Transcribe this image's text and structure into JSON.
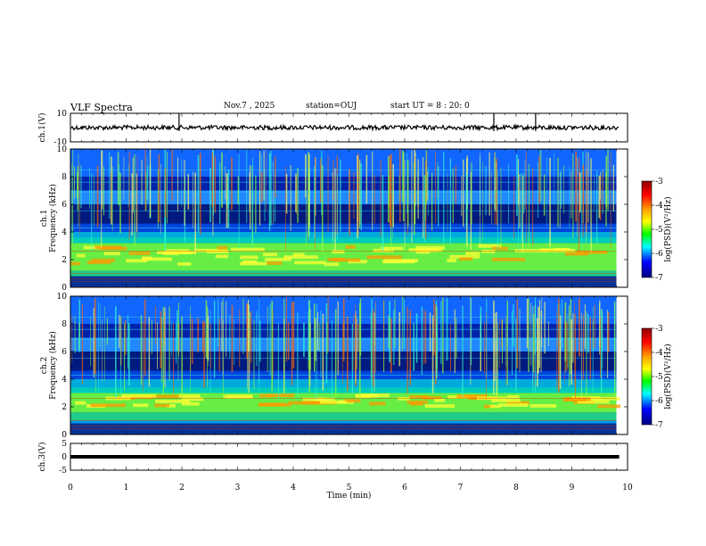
{
  "header": {
    "title": "VLF Spectra",
    "date": "Nov.7 , 2025",
    "station": "station=OUJ",
    "start_ut": "start UT = 8 : 20: 0"
  },
  "chart_data": [
    {
      "type": "line",
      "ylabel": "ch.1(V)",
      "ylim": [
        -10,
        10
      ],
      "yticks": [
        "10",
        "-10"
      ],
      "baseline": 0,
      "spikes_at_min": [
        1.95,
        7.6,
        8.35
      ]
    },
    {
      "type": "heatmap",
      "xlabel": "",
      "ylabel_line1": "ch.1",
      "ylabel_line2": "Frequency (kHz)",
      "xlim": [
        0,
        10
      ],
      "ylim": [
        0,
        10
      ],
      "yticks": [
        "0",
        "2",
        "4",
        "6",
        "8",
        "10"
      ],
      "data_extent_min": 9.8,
      "intense_band_khz": [
        1.2,
        3.2
      ],
      "colorbar": {
        "label": "log(PSD)(V²/Hz)",
        "range": [
          -7,
          -3
        ],
        "ticks": [
          "-3",
          "-4",
          "-5",
          "-6",
          "-7"
        ],
        "colors": [
          "#8b0000",
          "#ff0000",
          "#ffa500",
          "#ffff00",
          "#00ff00",
          "#00ffff",
          "#0000ff",
          "#000080"
        ]
      }
    },
    {
      "type": "heatmap",
      "ylabel_line1": "ch.2",
      "ylabel_line2": "Frequency (kHz)",
      "xlim": [
        0,
        10
      ],
      "ylim": [
        0,
        10
      ],
      "yticks": [
        "0",
        "2",
        "4",
        "6",
        "8",
        "10"
      ],
      "data_extent_min": 9.8,
      "intense_band_khz": [
        1.6,
        3.0
      ],
      "colorbar": {
        "label": "log(PSD)(V²/Hz)",
        "range": [
          -7,
          -3
        ],
        "ticks": [
          "-3",
          "-4",
          "-5",
          "-6",
          "-7"
        ]
      }
    },
    {
      "type": "line",
      "ylabel": "ch.3(V)",
      "ylim": [
        -5,
        5
      ],
      "yticks": [
        "5",
        "0",
        "-5"
      ],
      "baseline": 0,
      "xlabel": "Time (min)",
      "xlim": [
        0,
        10
      ],
      "xticks": [
        "0",
        "1",
        "2",
        "3",
        "4",
        "5",
        "6",
        "7",
        "8",
        "9",
        "10"
      ]
    }
  ]
}
